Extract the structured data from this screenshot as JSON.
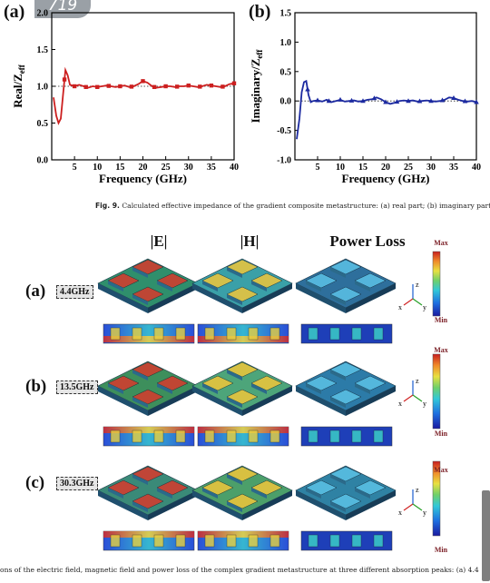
{
  "page": {
    "number": "719"
  },
  "fig9": {
    "panels": [
      {
        "letter": "(a)",
        "ylabel": "Real/Z",
        "ylabel_sub": "eff",
        "xlabel": "Frequency (GHz)",
        "color": "#cc1f1f"
      },
      {
        "letter": "(b)",
        "ylabel": "Imaginary/Z",
        "ylabel_sub": "eff",
        "xlabel": "Frequency (GHz)",
        "color": "#1c2aa0"
      }
    ],
    "caption_label": "Fig. 9.",
    "caption_text": "Calculated effective impedance of the gradient composite metastructure: (a) real part; (b) imaginary part."
  },
  "chart_data": [
    {
      "type": "line",
      "title": "",
      "xlabel": "Frequency (GHz)",
      "ylabel": "Real/Zeff",
      "xlim": [
        0,
        40
      ],
      "ylim": [
        0.0,
        2.0
      ],
      "xticks": [
        "5",
        "10",
        "15",
        "20",
        "25",
        "30",
        "35",
        "40"
      ],
      "yticks": [
        "0.0",
        "0.5",
        "1.0",
        "1.5",
        "2.0"
      ],
      "reference_line": 1.0,
      "series": [
        {
          "x": [
            0.4,
            1.0,
            1.5,
            2.0,
            2.5,
            3.0,
            3.5,
            4.0,
            5,
            6,
            7,
            8,
            9,
            10,
            11,
            12,
            13,
            14,
            15,
            16,
            17,
            18,
            19,
            20,
            21,
            22,
            23,
            24,
            25,
            26,
            27,
            28,
            29,
            30,
            31,
            32,
            33,
            34,
            35,
            36,
            37,
            38,
            39,
            40
          ],
          "y": [
            0.85,
            0.6,
            0.5,
            0.56,
            0.9,
            1.22,
            1.15,
            1.02,
            1.0,
            1.02,
            1.0,
            0.98,
            1.0,
            0.99,
            1.0,
            1.01,
            1.0,
            0.99,
            1.0,
            1.01,
            0.99,
            1.0,
            1.03,
            1.07,
            1.05,
            1.0,
            0.98,
            0.99,
            1.0,
            1.0,
            0.99,
            1.0,
            1.0,
            1.01,
            1.0,
            0.99,
            1.0,
            1.02,
            1.01,
            1.0,
            0.99,
            1.0,
            1.03,
            1.04
          ]
        }
      ],
      "markers_x": [
        2.8,
        5,
        7.5,
        10,
        12.5,
        15,
        17.5,
        20,
        22.5,
        25,
        27.5,
        30,
        32.5,
        35,
        37.5,
        40
      ]
    },
    {
      "type": "line",
      "title": "",
      "xlabel": "Frequency (GHz)",
      "ylabel": "Imaginary/Zeff",
      "xlim": [
        0,
        40
      ],
      "ylim": [
        -1.0,
        1.5
      ],
      "xticks": [
        "5",
        "10",
        "15",
        "20",
        "25",
        "30",
        "35",
        "40"
      ],
      "yticks": [
        "-1.0",
        "-0.5",
        "0.0",
        "0.5",
        "1.0",
        "1.5"
      ],
      "reference_line": 0.0,
      "series": [
        {
          "x": [
            0.4,
            1.0,
            1.5,
            2.0,
            2.5,
            3.0,
            3.5,
            4.0,
            5,
            6,
            7,
            8,
            9,
            10,
            11,
            12,
            13,
            14,
            15,
            16,
            17,
            18,
            19,
            20,
            21,
            22,
            23,
            24,
            25,
            26,
            27,
            28,
            29,
            30,
            31,
            32,
            33,
            34,
            35,
            36,
            37,
            38,
            39,
            40
          ],
          "y": [
            -0.65,
            -0.3,
            0.15,
            0.32,
            0.34,
            0.1,
            -0.02,
            0.0,
            0.01,
            -0.01,
            0.02,
            -0.02,
            0.0,
            0.02,
            -0.01,
            0.0,
            0.01,
            -0.01,
            0.0,
            0.02,
            0.03,
            0.06,
            0.03,
            -0.02,
            -0.05,
            -0.03,
            0.0,
            0.01,
            0.0,
            0.01,
            -0.01,
            0.0,
            0.01,
            0.0,
            -0.01,
            0.0,
            0.02,
            0.06,
            0.05,
            0.02,
            0.0,
            -0.01,
            0.0,
            -0.02
          ]
        }
      ],
      "markers_x": [
        2.8,
        5,
        7.5,
        10,
        12.5,
        15,
        17.5,
        20,
        22.5,
        25,
        27.5,
        30,
        32.5,
        35,
        37.5,
        40
      ]
    }
  ],
  "fig10": {
    "columns": [
      "|E|",
      "|H|",
      "Power Loss"
    ],
    "rows": [
      {
        "letter": "(a)",
        "freq": "4.4GHz"
      },
      {
        "letter": "(b)",
        "freq": "13.5GHz"
      },
      {
        "letter": "(c)",
        "freq": "30.3GHz"
      }
    ],
    "scale_max": "Max",
    "scale_min": "Min",
    "axis_labels": {
      "z": "z",
      "x": "x",
      "y": "y"
    },
    "caption_text": "ons of the electric field, magnetic field and power loss of the complex gradient metastructure at three different absorption peaks: (a) 4.4"
  }
}
